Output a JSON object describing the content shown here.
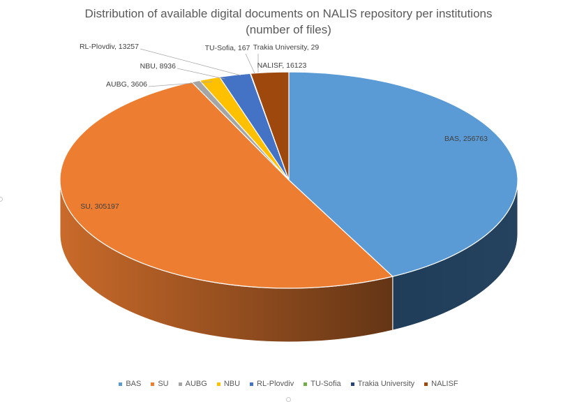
{
  "chart_data": {
    "type": "pie",
    "title_line1": "Distribution of available digital documents on NALIS repository per institutions",
    "title_line2": "(number of files)",
    "slices": [
      {
        "name": "BAS",
        "value": 256763,
        "label": "BAS, 256763",
        "color": "#5B9BD5"
      },
      {
        "name": "SU",
        "value": 305197,
        "label": "SU, 305197",
        "color": "#ED7D31"
      },
      {
        "name": "AUBG",
        "value": 3606,
        "label": "AUBG, 3606",
        "color": "#A5A5A5"
      },
      {
        "name": "NBU",
        "value": 8936,
        "label": "NBU, 8936",
        "color": "#FFC000"
      },
      {
        "name": "RL-Plovdiv",
        "value": 13257,
        "label": "RL-Plovdiv, 13257",
        "color": "#4472C4"
      },
      {
        "name": "TU-Sofia",
        "value": 167,
        "label": "TU-Sofia, 167",
        "color": "#70AD47"
      },
      {
        "name": "Trakia University",
        "value": 29,
        "label": "Trakia University, 29",
        "color": "#264478"
      },
      {
        "name": "NALISF",
        "value": 16123,
        "label": "NALISF, 16123",
        "color": "#9E480E"
      }
    ],
    "legend_position": "bottom",
    "style": "3d-pie"
  }
}
